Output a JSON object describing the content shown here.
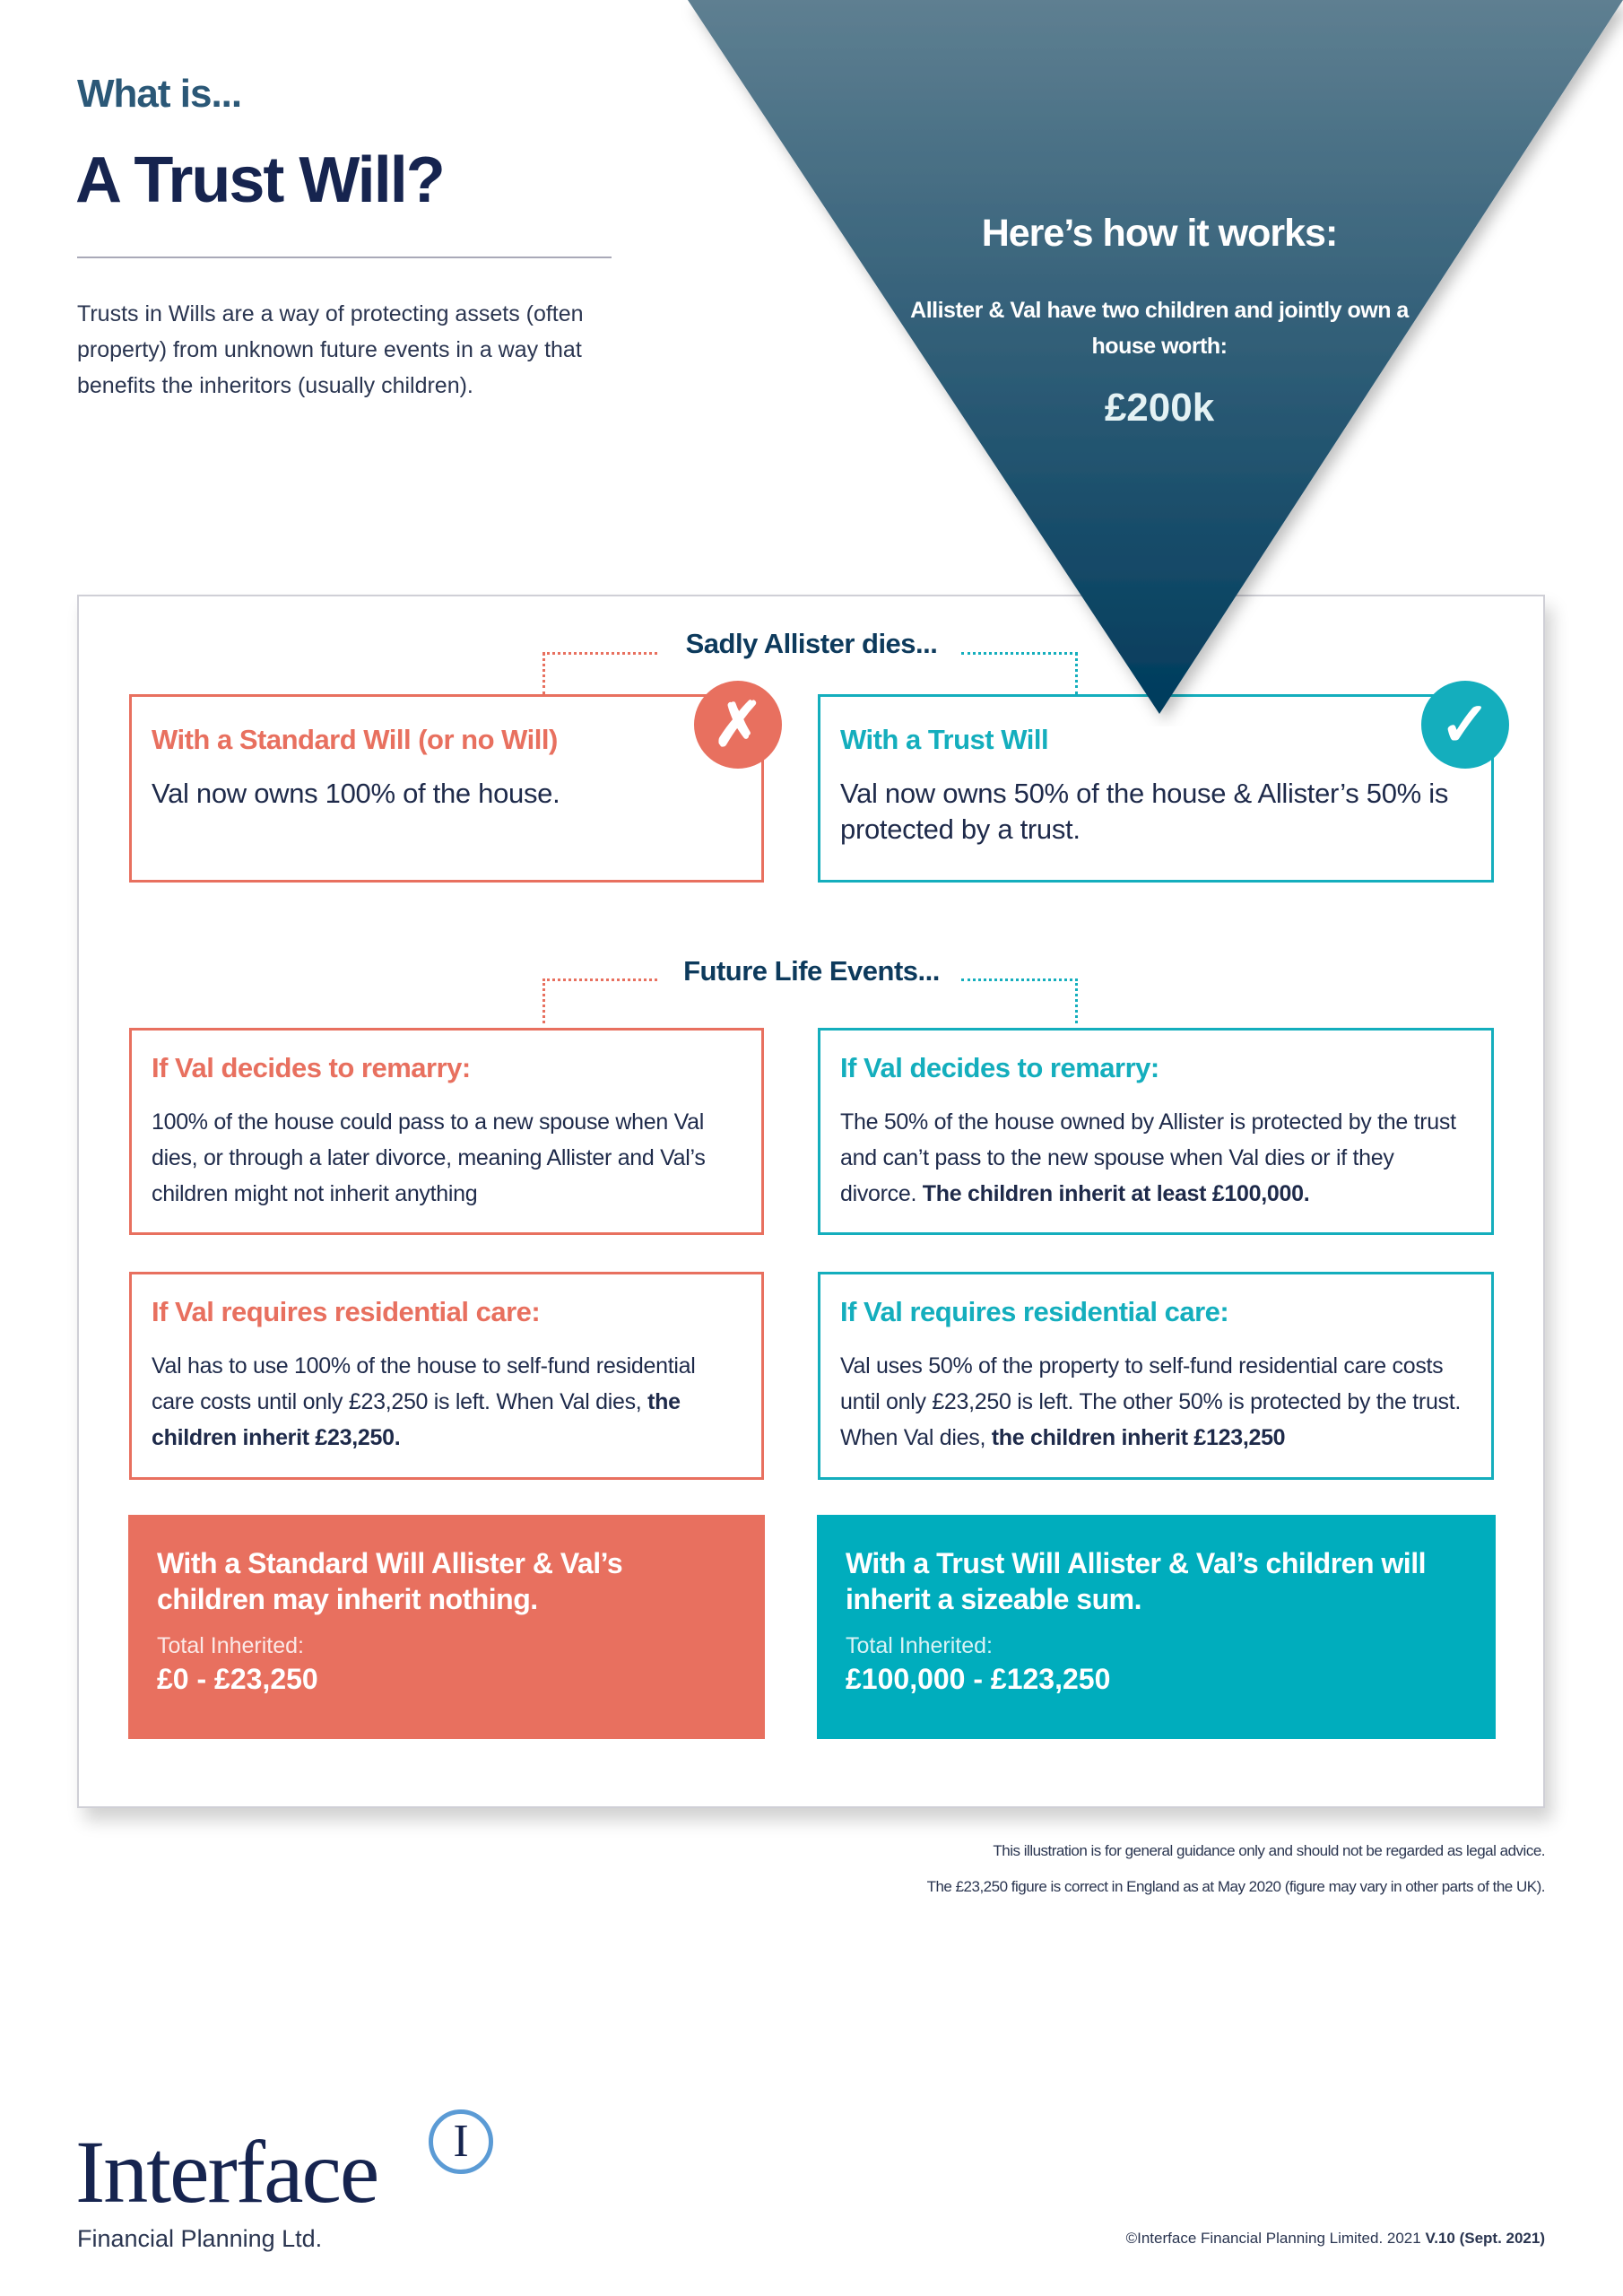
{
  "header": {
    "kicker": "What is...",
    "title": "A Trust Will?",
    "intro": "Trusts in Wills are a way of protecting assets (often property) from unknown future events in a way that benefits the inheritors (usually children)."
  },
  "triangle": {
    "heading": "Here’s how it works:",
    "description": "Allister & Val have two children and jointly own a house worth:",
    "value": "£200k",
    "colors": [
      "#5e7f91",
      "#003b5c"
    ]
  },
  "sections": {
    "event1": "Sadly Allister dies...",
    "event2": "Future Life Events..."
  },
  "colors": {
    "standard": "#e8705f",
    "trust": "#14aebd",
    "navy": "#16244f"
  },
  "standard": {
    "icon": "cross-icon",
    "icon_glyph": "✗",
    "title": "With a Standard Will (or no Will)",
    "body": "Val now owns 100% of the house.",
    "remarry_title": "If Val decides to remarry:",
    "remarry_body": "100% of the house could pass to a new spouse when Val dies, or through a later divorce, meaning Allister and Val’s children might not inherit anything",
    "care_title": "If Val requires residential care:",
    "care_body": "Val has to use 100% of the house to self-fund residential care costs until only £23,250 is left. When Val dies, ",
    "care_bold": "the children inherit £23,250.",
    "summary": "With a Standard Will Allister & Val’s children may inherit nothing.",
    "total_label": "Total Inherited:",
    "total_value": "£0 - £23,250"
  },
  "trust": {
    "icon": "check-icon",
    "icon_glyph": "✓",
    "title": "With a Trust Will",
    "body": "Val now owns 50% of the house & Allister’s 50% is protected by a trust.",
    "remarry_title": "If Val decides to remarry:",
    "remarry_body": "The 50% of the house owned by Allister is protected by the trust and can’t pass to the new spouse when Val dies or if they divorce. ",
    "remarry_bold": "The children inherit at least £100,000.",
    "care_title": "If Val requires residential care:",
    "care_body": "Val uses 50% of the property to self-fund residential care costs until only £23,250 is left. The other 50% is protected by the trust. When Val dies, ",
    "care_bold": "the children inherit £123,250",
    "summary": "With a Trust Will Allister & Val’s children will inherit a sizeable sum.",
    "total_label": "Total Inherited:",
    "total_value": "£100,000 - £123,250"
  },
  "footer": {
    "note1": "This illustration is for general guidance only and should not be regarded as legal advice.",
    "note2": "The £23,250 figure is correct in England as at May 2020 (figure may vary in other parts of the UK).",
    "logo_name": "Interface",
    "logo_letter": "I",
    "logo_sub": "Financial Planning Ltd.",
    "copyright": "©Interface Financial Planning Limited. 2021 ",
    "version": "V.10 (Sept. 2021)"
  }
}
